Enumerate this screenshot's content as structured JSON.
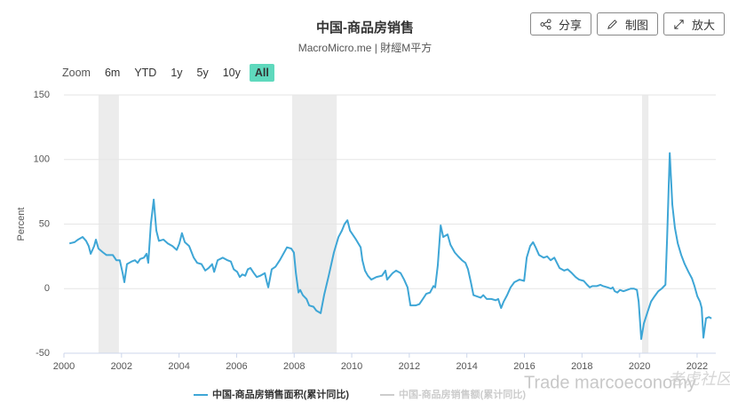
{
  "header": {
    "title": "中国-商品房销售",
    "subtitle": "MacroMicro.me | 財經M平方",
    "buttons": [
      "分享",
      "制图",
      "放大"
    ]
  },
  "zoom": {
    "label": "Zoom",
    "options": [
      "6m",
      "YTD",
      "1y",
      "5y",
      "10y",
      "All"
    ],
    "active_index": 5
  },
  "watermark": [
    "Trade marcoeconomy",
    "老虎社区"
  ],
  "chart_data": {
    "type": "line",
    "ylabel": "Percent",
    "xlim": [
      2000,
      2022.65
    ],
    "xticks": [
      2000,
      2002,
      2004,
      2006,
      2008,
      2010,
      2012,
      2014,
      2016,
      2018,
      2020,
      2022
    ],
    "ylim": [
      -50,
      150
    ],
    "yticks": [
      -50,
      0,
      50,
      100,
      150
    ],
    "grid": true,
    "shaded_periods": [
      [
        2001.2,
        2001.91
      ],
      [
        2007.93,
        2009.48
      ],
      [
        2020.09,
        2020.31
      ]
    ],
    "x": [
      2000.19,
      2000.37,
      2000.49,
      2000.65,
      2000.77,
      2000.86,
      2000.93,
      2001.05,
      2001.11,
      2001.2,
      2001.36,
      2001.48,
      2001.7,
      2001.82,
      2001.94,
      2002.04,
      2002.1,
      2002.19,
      2002.35,
      2002.47,
      2002.56,
      2002.65,
      2002.78,
      2002.87,
      2002.93,
      2003.02,
      2003.12,
      2003.21,
      2003.3,
      2003.46,
      2003.61,
      2003.77,
      2003.92,
      2004.01,
      2004.1,
      2004.2,
      2004.35,
      2004.51,
      2004.63,
      2004.78,
      2004.91,
      2005.03,
      2005.15,
      2005.22,
      2005.34,
      2005.52,
      2005.68,
      2005.8,
      2005.9,
      2006.02,
      2006.11,
      2006.2,
      2006.3,
      2006.39,
      2006.48,
      2006.6,
      2006.7,
      2006.82,
      2006.98,
      2007.04,
      2007.1,
      2007.22,
      2007.35,
      2007.5,
      2007.65,
      2007.75,
      2007.9,
      2007.99,
      2008.06,
      2008.15,
      2008.21,
      2008.3,
      2008.43,
      2008.52,
      2008.67,
      2008.77,
      2008.92,
      2009.04,
      2009.2,
      2009.38,
      2009.54,
      2009.66,
      2009.75,
      2009.85,
      2009.94,
      2010.15,
      2010.31,
      2010.37,
      2010.46,
      2010.56,
      2010.68,
      2010.86,
      2011.05,
      2011.17,
      2011.23,
      2011.42,
      2011.54,
      2011.7,
      2011.82,
      2011.94,
      2012.04,
      2012.22,
      2012.35,
      2012.47,
      2012.59,
      2012.72,
      2012.84,
      2012.9,
      2012.99,
      2013.09,
      2013.18,
      2013.33,
      2013.43,
      2013.58,
      2013.7,
      2013.83,
      2013.95,
      2014.04,
      2014.14,
      2014.23,
      2014.35,
      2014.48,
      2014.57,
      2014.69,
      2014.85,
      2015.0,
      2015.09,
      2015.19,
      2015.28,
      2015.4,
      2015.52,
      2015.65,
      2015.83,
      2015.99,
      2016.08,
      2016.2,
      2016.3,
      2016.39,
      2016.51,
      2016.67,
      2016.79,
      2016.91,
      2017.04,
      2017.13,
      2017.22,
      2017.38,
      2017.5,
      2017.65,
      2017.78,
      2017.9,
      2018.06,
      2018.18,
      2018.27,
      2018.36,
      2018.52,
      2018.64,
      2018.73,
      2018.89,
      2019.01,
      2019.07,
      2019.14,
      2019.23,
      2019.32,
      2019.44,
      2019.57,
      2019.69,
      2019.81,
      2019.91,
      2019.97,
      2020.06,
      2020.15,
      2020.28,
      2020.4,
      2020.52,
      2020.65,
      2020.77,
      2020.9,
      2020.96,
      2021.05,
      2021.14,
      2021.23,
      2021.33,
      2021.45,
      2021.57,
      2021.7,
      2021.82,
      2021.91,
      2022.01,
      2022.1,
      2022.16,
      2022.22,
      2022.31,
      2022.41,
      2022.5
    ],
    "series": [
      {
        "name": "中国-商品房销售面积(累计同比)",
        "color": "#3ea6d6",
        "values": [
          35,
          36,
          38,
          40,
          37,
          33,
          27,
          33,
          38,
          31,
          28,
          26,
          26,
          22,
          22,
          12,
          5,
          19,
          21,
          22,
          20,
          23,
          24,
          27,
          20,
          50,
          69,
          45,
          37,
          38,
          35,
          33,
          30,
          35,
          43,
          36,
          33,
          24,
          20,
          19,
          14,
          16,
          19,
          13,
          22,
          24,
          22,
          21,
          15,
          13,
          9,
          11,
          10,
          15,
          16,
          12,
          9,
          10,
          12,
          6,
          1,
          15,
          17,
          22,
          28,
          32,
          31,
          28,
          12,
          -3,
          -1,
          -5,
          -8,
          -13,
          -14,
          -17,
          -19,
          -5,
          10,
          28,
          40,
          45,
          50,
          53,
          45,
          38,
          32,
          22,
          14,
          10,
          7,
          9,
          10,
          14,
          7,
          12,
          14,
          12,
          7,
          1,
          -13,
          -13,
          -12,
          -8,
          -4,
          -3,
          2,
          1,
          18,
          49,
          40,
          42,
          34,
          28,
          25,
          22,
          20,
          15,
          5,
          -5,
          -6,
          -7,
          -5,
          -8,
          -8,
          -9,
          -8,
          -15,
          -10,
          -5,
          1,
          5,
          7,
          6,
          24,
          33,
          36,
          32,
          26,
          24,
          25,
          22,
          24,
          20,
          16,
          14,
          15,
          12,
          9,
          7,
          6,
          3,
          1,
          2,
          2,
          3,
          2,
          1,
          0,
          1,
          -2,
          -3,
          -1,
          -2,
          -1,
          0,
          0,
          -1,
          -10,
          -39,
          -27,
          -18,
          -10,
          -6,
          -2,
          0,
          3,
          40,
          105,
          65,
          47,
          35,
          26,
          19,
          13,
          8,
          2,
          -6,
          -10,
          -15,
          -38,
          -23,
          -22,
          -23
        ]
      },
      {
        "name": "中国-商品房销售额(累计同比)",
        "color": "#cccccc",
        "visible": false
      }
    ]
  }
}
